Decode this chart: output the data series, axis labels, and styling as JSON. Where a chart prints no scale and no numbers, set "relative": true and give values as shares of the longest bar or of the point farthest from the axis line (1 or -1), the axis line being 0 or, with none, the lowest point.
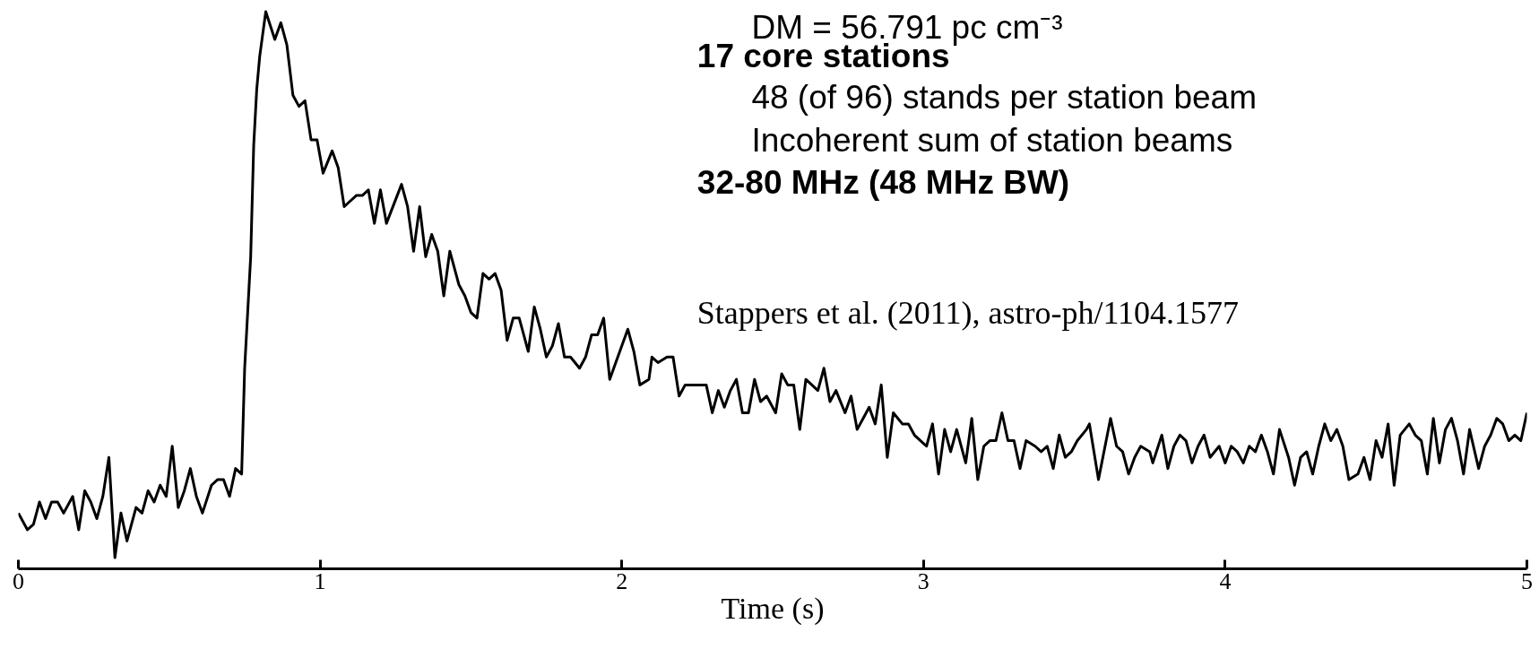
{
  "chart_data": {
    "type": "line",
    "relative": true,
    "xlabel": "Time (s)",
    "xlim": [
      0,
      5
    ],
    "xticks": [
      0,
      1,
      2,
      3,
      4,
      5
    ],
    "grid": false,
    "marker": "none",
    "line_style": "solid",
    "annotations": [
      "DM = 56.791 pc cm⁻³",
      "17 core stations",
      "48 (of 96) stands per station beam",
      "Incoherent sum of station beams",
      "32-80 MHz (48 MHz BW)",
      "Stappers et al. (2011), astro-ph/1104.1577"
    ],
    "series": [
      {
        "color": "#000000",
        "x": [
          0.0,
          0.03,
          0.05,
          0.07,
          0.09,
          0.11,
          0.13,
          0.15,
          0.18,
          0.2,
          0.22,
          0.24,
          0.26,
          0.28,
          0.3,
          0.32,
          0.34,
          0.36,
          0.39,
          0.41,
          0.43,
          0.45,
          0.47,
          0.49,
          0.51,
          0.53,
          0.55,
          0.57,
          0.59,
          0.61,
          0.64,
          0.66,
          0.68,
          0.7,
          0.72,
          0.74,
          0.75,
          0.77,
          0.78,
          0.79,
          0.8,
          0.82,
          0.85,
          0.87,
          0.89,
          0.91,
          0.93,
          0.95,
          0.97,
          0.99,
          1.01,
          1.04,
          1.06,
          1.08,
          1.1,
          1.12,
          1.14,
          1.16,
          1.18,
          1.2,
          1.22,
          1.27,
          1.29,
          1.31,
          1.33,
          1.35,
          1.37,
          1.39,
          1.41,
          1.43,
          1.46,
          1.48,
          1.5,
          1.52,
          1.54,
          1.56,
          1.58,
          1.6,
          1.62,
          1.64,
          1.66,
          1.69,
          1.71,
          1.73,
          1.75,
          1.77,
          1.79,
          1.81,
          1.83,
          1.86,
          1.88,
          1.9,
          1.92,
          1.94,
          1.96,
          1.98,
          2.02,
          2.04,
          2.06,
          2.09,
          2.1,
          2.12,
          2.15,
          2.17,
          2.19,
          2.21,
          2.23,
          2.25,
          2.28,
          2.3,
          2.32,
          2.34,
          2.36,
          2.38,
          2.4,
          2.42,
          2.44,
          2.46,
          2.48,
          2.51,
          2.53,
          2.55,
          2.57,
          2.59,
          2.61,
          2.63,
          2.65,
          2.67,
          2.69,
          2.71,
          2.74,
          2.76,
          2.78,
          2.8,
          2.82,
          2.84,
          2.86,
          2.88,
          2.9,
          2.93,
          2.95,
          2.97,
          2.99,
          3.01,
          3.03,
          3.05,
          3.07,
          3.09,
          3.11,
          3.14,
          3.16,
          3.18,
          3.2,
          3.22,
          3.24,
          3.26,
          3.28,
          3.3,
          3.32,
          3.34,
          3.37,
          3.39,
          3.41,
          3.43,
          3.45,
          3.47,
          3.49,
          3.51,
          3.54,
          3.55,
          3.58,
          3.62,
          3.64,
          3.66,
          3.68,
          3.7,
          3.72,
          3.75,
          3.76,
          3.79,
          3.81,
          3.83,
          3.85,
          3.87,
          3.89,
          3.91,
          3.93,
          3.95,
          3.98,
          4.0,
          4.02,
          4.04,
          4.06,
          4.08,
          4.1,
          4.12,
          4.14,
          4.16,
          4.18,
          4.21,
          4.23,
          4.25,
          4.27,
          4.29,
          4.31,
          4.33,
          4.35,
          4.37,
          4.39,
          4.41,
          4.44,
          4.46,
          4.48,
          4.5,
          4.52,
          4.54,
          4.56,
          4.58,
          4.61,
          4.63,
          4.65,
          4.67,
          4.69,
          4.71,
          4.73,
          4.75,
          4.77,
          4.79,
          4.81,
          4.84,
          4.86,
          4.88,
          4.9,
          4.92,
          4.94,
          4.96,
          4.98,
          5.0
        ],
        "values": [
          0.1,
          0.07,
          0.08,
          0.12,
          0.09,
          0.12,
          0.12,
          0.1,
          0.13,
          0.07,
          0.14,
          0.12,
          0.09,
          0.13,
          0.2,
          0.02,
          0.1,
          0.05,
          0.11,
          0.1,
          0.14,
          0.12,
          0.15,
          0.13,
          0.22,
          0.11,
          0.14,
          0.18,
          0.13,
          0.1,
          0.15,
          0.16,
          0.16,
          0.13,
          0.18,
          0.17,
          0.36,
          0.56,
          0.76,
          0.86,
          0.92,
          1.0,
          0.95,
          0.98,
          0.94,
          0.85,
          0.83,
          0.84,
          0.77,
          0.77,
          0.71,
          0.75,
          0.72,
          0.65,
          0.66,
          0.67,
          0.67,
          0.68,
          0.62,
          0.68,
          0.62,
          0.69,
          0.65,
          0.57,
          0.65,
          0.56,
          0.6,
          0.57,
          0.49,
          0.57,
          0.51,
          0.49,
          0.46,
          0.45,
          0.53,
          0.52,
          0.53,
          0.5,
          0.41,
          0.45,
          0.45,
          0.39,
          0.47,
          0.43,
          0.38,
          0.4,
          0.44,
          0.38,
          0.38,
          0.36,
          0.38,
          0.42,
          0.42,
          0.45,
          0.34,
          0.37,
          0.43,
          0.39,
          0.33,
          0.34,
          0.38,
          0.37,
          0.38,
          0.38,
          0.31,
          0.33,
          0.33,
          0.33,
          0.33,
          0.28,
          0.32,
          0.29,
          0.32,
          0.34,
          0.28,
          0.28,
          0.34,
          0.3,
          0.31,
          0.28,
          0.35,
          0.33,
          0.33,
          0.25,
          0.34,
          0.33,
          0.32,
          0.36,
          0.3,
          0.32,
          0.28,
          0.31,
          0.25,
          0.27,
          0.29,
          0.26,
          0.33,
          0.2,
          0.28,
          0.26,
          0.26,
          0.24,
          0.23,
          0.22,
          0.26,
          0.17,
          0.25,
          0.21,
          0.25,
          0.19,
          0.27,
          0.16,
          0.22,
          0.23,
          0.23,
          0.28,
          0.23,
          0.23,
          0.18,
          0.23,
          0.22,
          0.21,
          0.22,
          0.18,
          0.24,
          0.2,
          0.21,
          0.23,
          0.25,
          0.26,
          0.16,
          0.27,
          0.22,
          0.21,
          0.17,
          0.2,
          0.22,
          0.21,
          0.19,
          0.24,
          0.18,
          0.22,
          0.24,
          0.23,
          0.19,
          0.22,
          0.24,
          0.2,
          0.22,
          0.19,
          0.22,
          0.21,
          0.19,
          0.22,
          0.21,
          0.24,
          0.21,
          0.17,
          0.25,
          0.2,
          0.15,
          0.2,
          0.21,
          0.17,
          0.22,
          0.26,
          0.23,
          0.25,
          0.22,
          0.16,
          0.17,
          0.2,
          0.16,
          0.23,
          0.2,
          0.26,
          0.15,
          0.24,
          0.26,
          0.24,
          0.23,
          0.17,
          0.27,
          0.19,
          0.25,
          0.27,
          0.23,
          0.17,
          0.25,
          0.18,
          0.22,
          0.24,
          0.27,
          0.26,
          0.23,
          0.24,
          0.23,
          0.28
        ]
      }
    ]
  }
}
